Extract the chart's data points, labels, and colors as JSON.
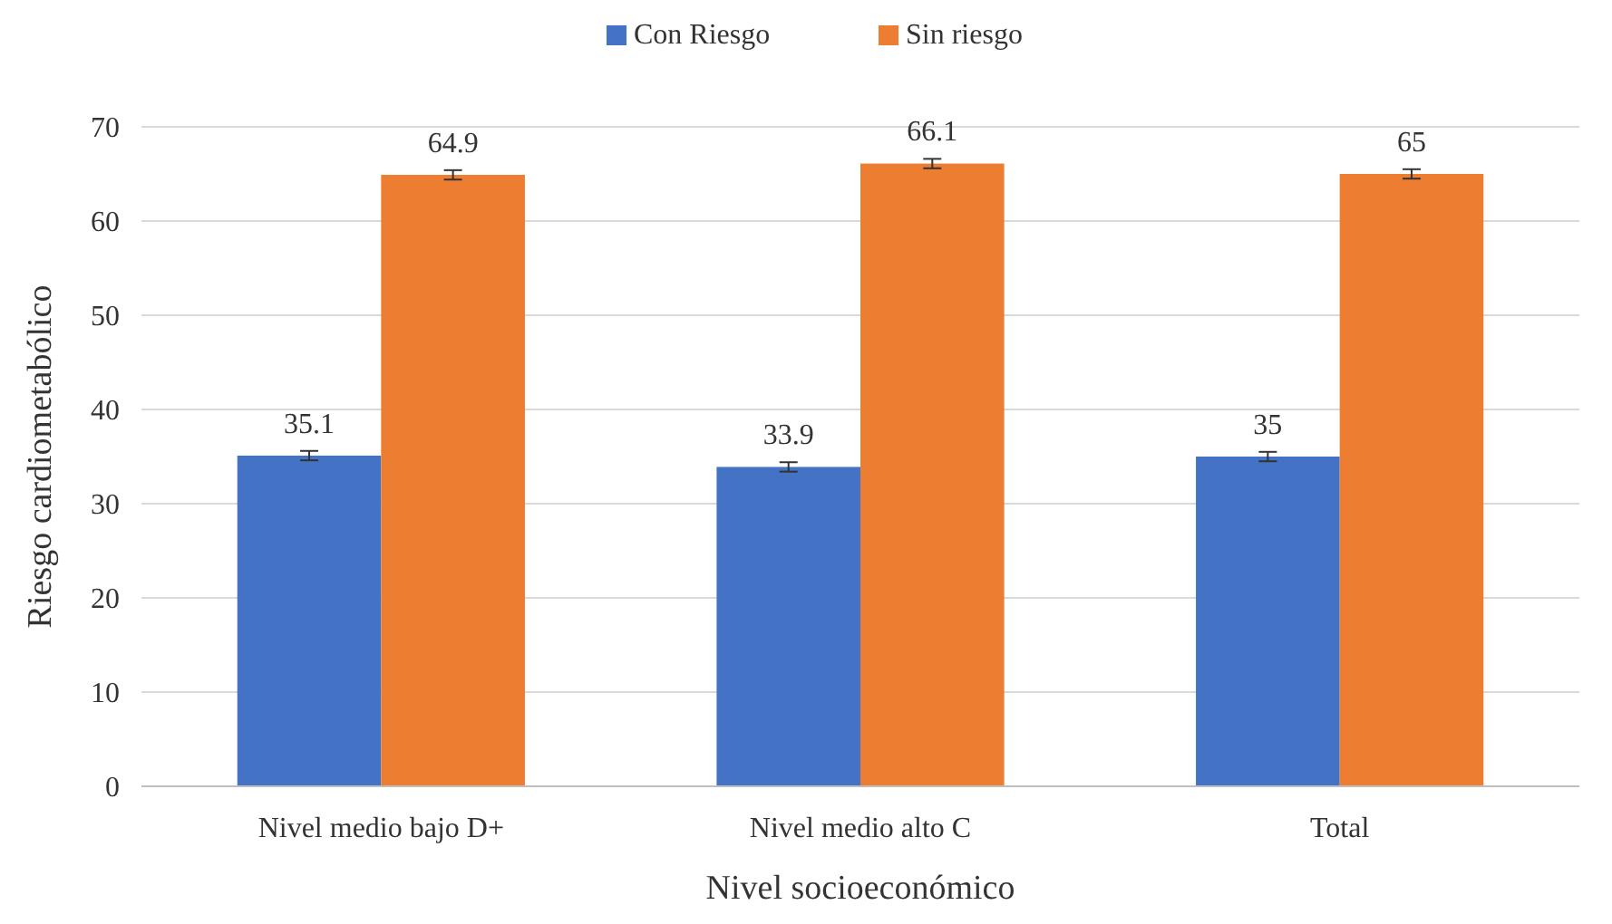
{
  "chart_data": {
    "type": "bar",
    "xlabel": "Nivel socioeconómico",
    "ylabel": "Riesgo cardiometabólico",
    "categories": [
      "Nivel medio bajo D+",
      "Nivel medio alto C",
      "Total"
    ],
    "series": [
      {
        "name": "Con Riesgo",
        "color": "#4472c4",
        "values": [
          35.1,
          33.9,
          35
        ],
        "errors": [
          0.5,
          0.5,
          0.5
        ]
      },
      {
        "name": "Sin riesgo",
        "color": "#ed7d31",
        "values": [
          64.9,
          66.1,
          65
        ],
        "errors": [
          0.5,
          0.5,
          0.5
        ]
      }
    ],
    "ylim": [
      0,
      70
    ],
    "yticks": [
      0,
      10,
      20,
      30,
      40,
      50,
      60,
      70
    ],
    "grid": "y",
    "legend": "top",
    "data_labels": true
  }
}
